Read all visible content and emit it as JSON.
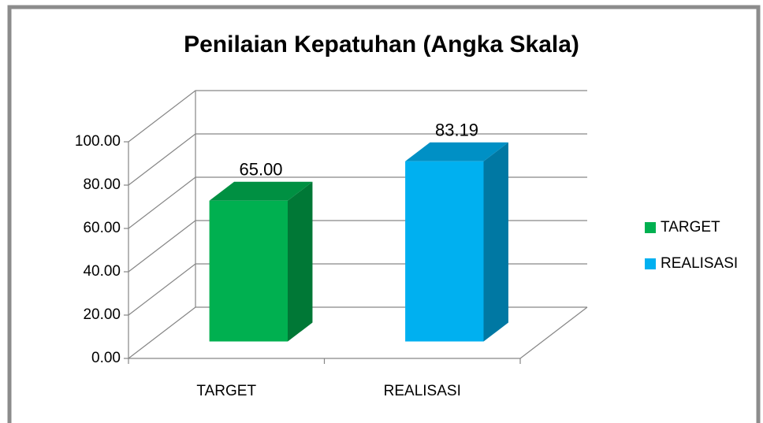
{
  "chart_data": {
    "type": "bar3d",
    "title": "Penilaian Kepatuhan (Angka Skala)",
    "categories": [
      "TARGET",
      "REALISASI"
    ],
    "values": [
      65,
      83.19
    ],
    "value_labels": [
      "65.00",
      "83.19"
    ],
    "colors": [
      "#00b050",
      "#00b0f0"
    ],
    "ylim": [
      0,
      100
    ],
    "yticks": [
      {
        "value": 0,
        "label": "0.00"
      },
      {
        "value": 20,
        "label": "20.00"
      },
      {
        "value": 40,
        "label": "40.00"
      },
      {
        "value": 60,
        "label": "60.00"
      },
      {
        "value": 80,
        "label": "80.00"
      },
      {
        "value": 100,
        "label": "100.00"
      }
    ],
    "grid": true,
    "legend": "right"
  }
}
